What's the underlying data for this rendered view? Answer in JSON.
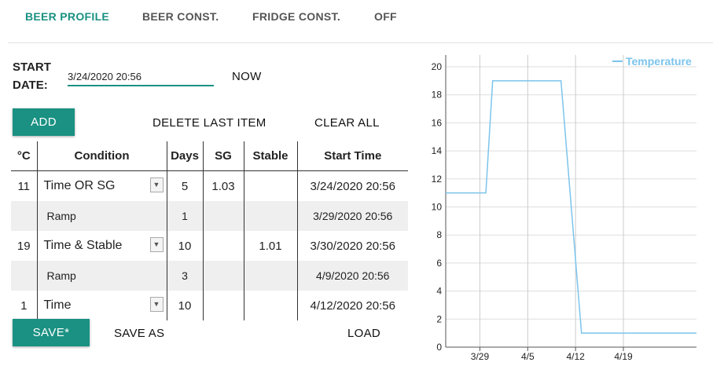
{
  "tabs": [
    {
      "label": "BEER PROFILE",
      "active": true
    },
    {
      "label": "BEER CONST.",
      "active": false
    },
    {
      "label": "FRIDGE CONST.",
      "active": false
    },
    {
      "label": "OFF",
      "active": false
    }
  ],
  "start": {
    "label_line1": "START",
    "label_line2": "DATE:",
    "value": "3/24/2020 20:56",
    "now_label": "NOW"
  },
  "actions": {
    "add": "ADD",
    "delete_last": "DELETE LAST ITEM",
    "clear_all": "CLEAR ALL",
    "save": "SAVE*",
    "save_as": "SAVE AS",
    "load": "LOAD"
  },
  "table": {
    "headers": [
      "°C",
      "Condition",
      "Days",
      "SG",
      "Stable",
      "Start Time"
    ],
    "rows": [
      {
        "temp": "11",
        "condition": "Time OR SG",
        "days": "5",
        "sg": "1.03",
        "stable": "",
        "start": "3/24/2020 20:56",
        "ramp": false
      },
      {
        "temp": "",
        "condition": "Ramp",
        "days": "1",
        "sg": "",
        "stable": "",
        "start": "3/29/2020 20:56",
        "ramp": true
      },
      {
        "temp": "19",
        "condition": "Time & Stable",
        "days": "10",
        "sg": "",
        "stable": "1.01",
        "start": "3/30/2020 20:56",
        "ramp": false
      },
      {
        "temp": "",
        "condition": "Ramp",
        "days": "3",
        "sg": "",
        "stable": "",
        "start": "4/9/2020 20:56",
        "ramp": true
      },
      {
        "temp": "1",
        "condition": "Time",
        "days": "10",
        "sg": "",
        "stable": "",
        "start": "4/12/2020 20:56",
        "ramp": false
      }
    ]
  },
  "chart_data": {
    "type": "line",
    "legend": "Temperature",
    "legend_position": "top-right",
    "series_color": "#7cc4ec",
    "ylim": [
      0,
      20
    ],
    "yticks": [
      0,
      2,
      4,
      6,
      8,
      10,
      12,
      14,
      16,
      18,
      20
    ],
    "xlim": [
      0,
      36.7
    ],
    "xticks": [
      {
        "x": 5,
        "label": "3/29"
      },
      {
        "x": 12,
        "label": "4/5"
      },
      {
        "x": 19,
        "label": "4/12"
      },
      {
        "x": 26,
        "label": "4/19"
      }
    ],
    "grid": true,
    "points": [
      [
        0,
        11
      ],
      [
        5.87,
        11
      ],
      [
        6.87,
        19
      ],
      [
        16.87,
        19
      ],
      [
        19.87,
        1
      ],
      [
        36.7,
        1
      ]
    ]
  }
}
